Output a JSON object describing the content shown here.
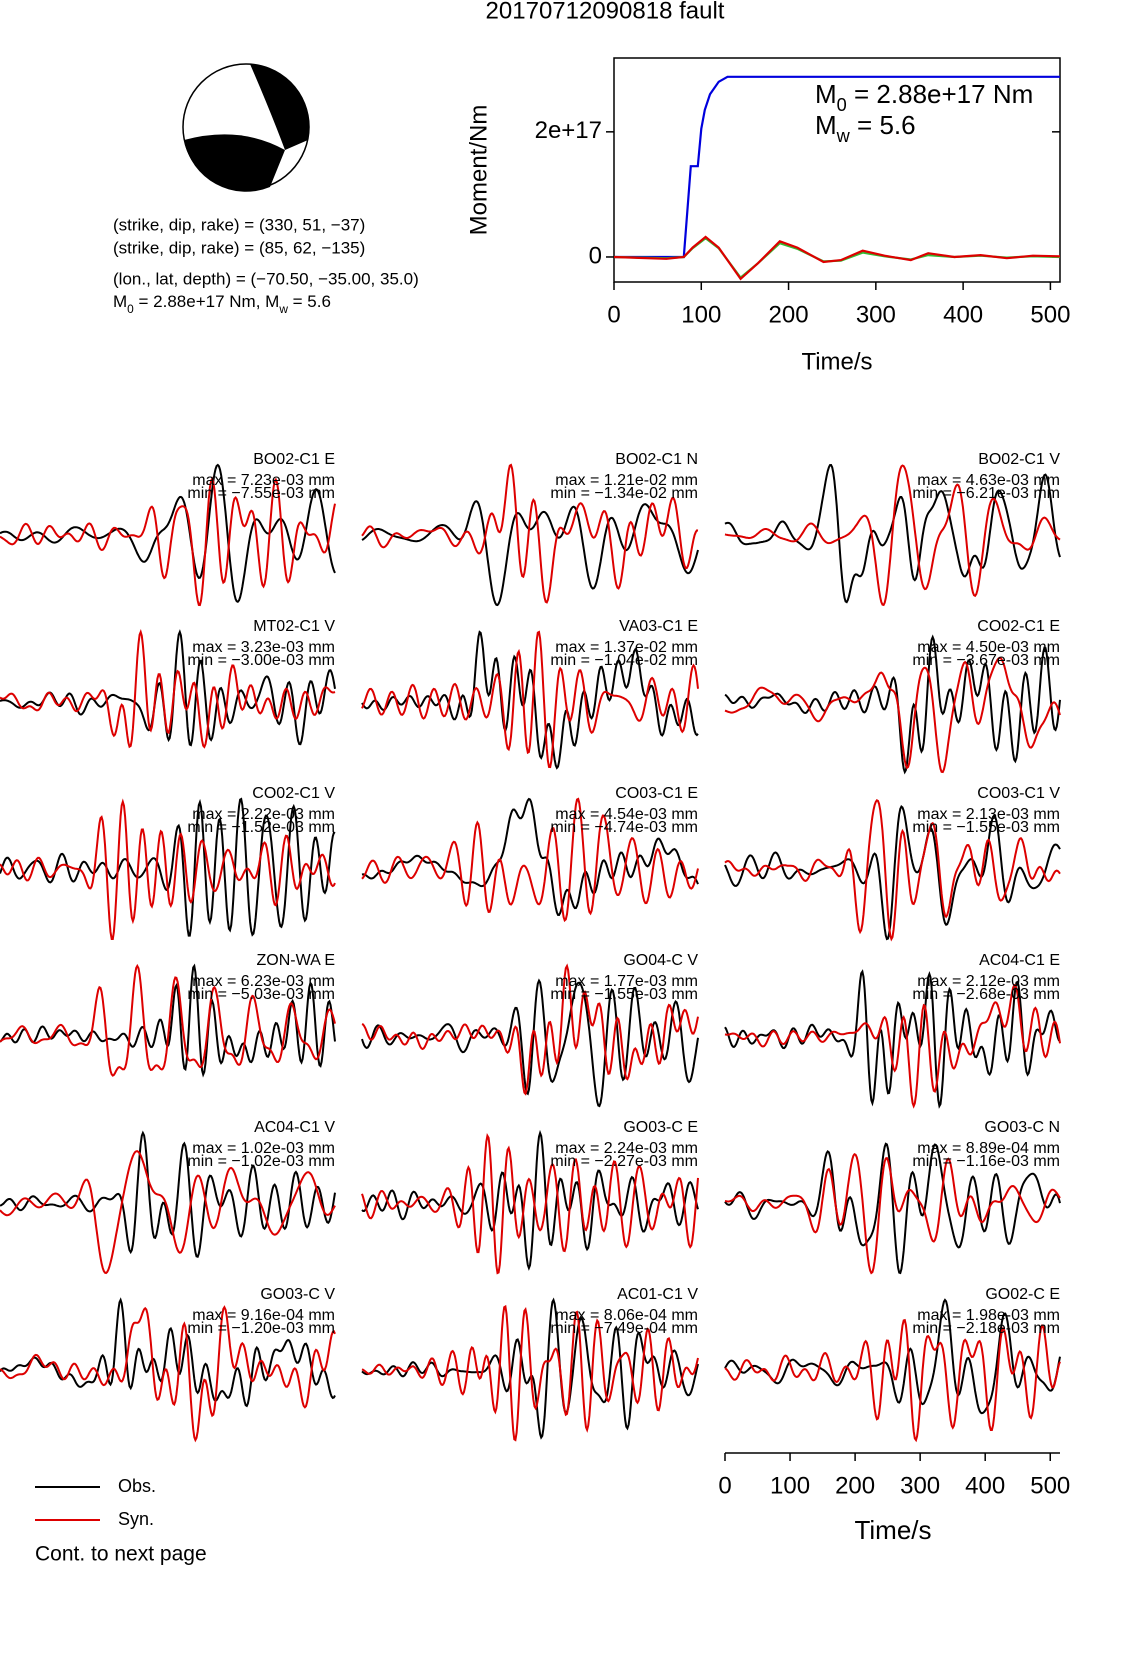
{
  "title": "20170712090818 fault",
  "mechanism": {
    "lines": [
      "(strike, dip, rake) = (330, 51, −37)",
      "(strike, dip, rake) = (85, 62, −135)",
      "(lon., lat, depth) = (−70.50, −35.00, 35.0)"
    ],
    "moment_line": [
      "M",
      "0",
      " = 2.88e+17 Nm, M",
      "w",
      " = 5.6"
    ]
  },
  "chart_data": {
    "type": "line",
    "xlabel": "Time/s",
    "ylabel": "Moment/Nm",
    "xlim": [
      0,
      511
    ],
    "ylim": [
      -4e+16,
      3.18e+17
    ],
    "xticks": [
      0,
      100,
      200,
      300,
      400,
      500
    ],
    "yticks": [
      0,
      {
        "value": 2e+17,
        "label": "2e+17"
      }
    ],
    "annotation": {
      "m0": [
        "M",
        "0",
        " = 2.88e+17 Nm"
      ],
      "mw": [
        "M",
        "w",
        " = 5.6"
      ]
    },
    "series": [
      {
        "color": "#0000dd",
        "x": [
          0,
          80,
          88,
          96,
          100,
          104,
          110,
          120,
          130,
          511
        ],
        "values": [
          0,
          0,
          1.45e+17,
          1.45e+17,
          2.05e+17,
          2.35e+17,
          2.6e+17,
          2.8e+17,
          2.88e+17,
          2.88e+17
        ]
      },
      {
        "color": "#33bb33",
        "x": [
          0,
          60,
          80,
          90,
          105,
          120,
          145,
          165,
          190,
          210,
          240,
          260,
          285,
          310,
          340,
          360,
          390,
          420,
          450,
          480,
          511
        ],
        "values": [
          0,
          -2000000000000000.0,
          0,
          1.4e+16,
          3e+16,
          1.4e+16,
          -3.3e+16,
          -1e+16,
          2.2e+16,
          1.3e+16,
          -7000000000000000.0,
          -6000000000000000.0,
          7000000000000000.0,
          1000000000000000.0,
          -4000000000000000.0,
          3000000000000000.0,
          0,
          2000000000000000.0,
          -1000000000000000.0,
          1000000000000000.0,
          0
        ]
      },
      {
        "color": "#dd0000",
        "x": [
          0,
          60,
          80,
          90,
          105,
          120,
          145,
          165,
          190,
          210,
          240,
          260,
          285,
          310,
          340,
          360,
          390,
          420,
          450,
          480,
          511
        ],
        "values": [
          0,
          -3000000000000000.0,
          0,
          1.5e+16,
          3.2e+16,
          1.5e+16,
          -3.5e+16,
          -1e+16,
          2.5e+16,
          1.5e+16,
          -8000000000000000.0,
          -5000000000000000.0,
          1e+16,
          2000000000000000.0,
          -5000000000000000.0,
          6000000000000000.0,
          0,
          3000000000000000.0,
          -2000000000000000.0,
          2000000000000000.0,
          1000000000000000.0
        ]
      }
    ]
  },
  "waveforms": {
    "panels": [
      {
        "station": "BO02-C1 E",
        "max": "max = 7.23e-03 mm",
        "min": "min = −7.55e-03 mm"
      },
      {
        "station": "BO02-C1 N",
        "max": "max = 1.21e-02 mm",
        "min": "min = −1.34e-02 mm"
      },
      {
        "station": "BO02-C1 V",
        "max": "max = 4.63e-03 mm",
        "min": "min = −6.21e-03 mm"
      },
      {
        "station": "MT02-C1 V",
        "max": "max = 3.23e-03 mm",
        "min": "min = −3.00e-03 mm"
      },
      {
        "station": "VA03-C1 E",
        "max": "max = 1.37e-02 mm",
        "min": "min = −1.04e-02 mm"
      },
      {
        "station": "CO02-C1 E",
        "max": "max = 4.50e-03 mm",
        "min": "min = −3.67e-03 mm"
      },
      {
        "station": "CO02-C1 V",
        "max": "max = 2.22e-03 mm",
        "min": "min = −1.52e-03 mm"
      },
      {
        "station": "CO03-C1 E",
        "max": "max = 4.54e-03 mm",
        "min": "min = −4.74e-03 mm"
      },
      {
        "station": "CO03-C1 V",
        "max": "max = 2.13e-03 mm",
        "min": "min = −1.55e-03 mm"
      },
      {
        "station": "ZON-WA E",
        "max": "max = 6.23e-03 mm",
        "min": "min = −5.03e-03 mm"
      },
      {
        "station": "GO04-C V",
        "max": "max = 1.77e-03 mm",
        "min": "min = −1.55e-03 mm"
      },
      {
        "station": "AC04-C1 E",
        "max": "max = 2.12e-03 mm",
        "min": "min = −2.68e-03 mm"
      },
      {
        "station": "AC04-C1 V",
        "max": "max = 1.02e-03 mm",
        "min": "min = −1.02e-03 mm"
      },
      {
        "station": "GO03-C E",
        "max": "max = 2.24e-03 mm",
        "min": "min = −2.27e-03 mm"
      },
      {
        "station": "GO03-C N",
        "max": "max = 8.89e-04 mm",
        "min": "min = −1.16e-03 mm"
      },
      {
        "station": "GO03-C V",
        "max": "max = 9.16e-04 mm",
        "min": "min = −1.20e-03 mm"
      },
      {
        "station": "AC01-C1 V",
        "max": "max = 8.06e-04 mm",
        "min": "min = −7.49e-04 mm"
      },
      {
        "station": "GO02-C E",
        "max": "max = 1.98e-03 mm",
        "min": "min = −2.18e-03 mm"
      }
    ],
    "legend": [
      {
        "name": "Obs.",
        "color": "#000000"
      },
      {
        "name": "Syn.",
        "color": "#dd0000"
      }
    ],
    "time_axis": {
      "label": "Time/s",
      "xlim": [
        0,
        515
      ],
      "xticks": [
        0,
        100,
        200,
        300,
        400,
        500
      ]
    },
    "note": "Cont. to next page"
  }
}
